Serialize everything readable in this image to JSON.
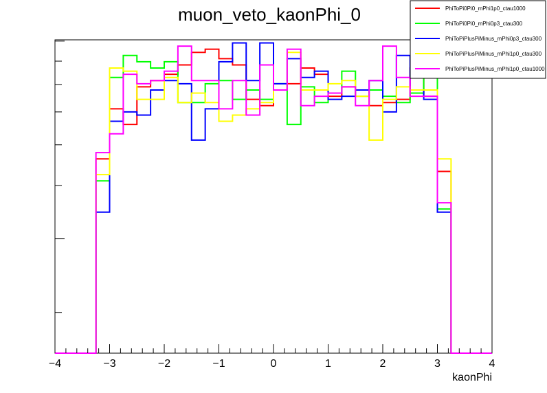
{
  "chart_data": {
    "type": "line",
    "step": true,
    "title": "muon_veto_kaonPhi_0",
    "xlabel": "kaonPhi",
    "ylabel": "",
    "xlim": [
      -4,
      4
    ],
    "ylim": [
      0,
      1
    ],
    "y_scale": "log",
    "y_tick_labels_shown": false,
    "grid": false,
    "legend_position": "top-right",
    "x_ticks": [
      -4,
      -3,
      -2,
      -1,
      0,
      1,
      2,
      3,
      4
    ],
    "bin_edges": [
      -4.0,
      -3.75,
      -3.5,
      -3.25,
      -3.0,
      -2.75,
      -2.5,
      -2.25,
      -2.0,
      -1.75,
      -1.5,
      -1.25,
      -1.0,
      -0.75,
      -0.5,
      -0.25,
      0.0,
      0.25,
      0.5,
      0.75,
      1.0,
      1.25,
      1.5,
      1.75,
      2.0,
      2.25,
      2.5,
      2.75,
      3.0,
      3.25,
      3.5,
      3.75,
      4.0
    ],
    "series": [
      {
        "name": "PhiToPi0Pi0_mPhi1p0_ctau1000",
        "color": "#ff0000",
        "values": [
          0,
          0,
          0,
          0.62,
          0.78,
          0.73,
          0.85,
          0.87,
          0.89,
          0.92,
          0.96,
          0.97,
          0.94,
          0.92,
          0.81,
          0.79,
          0.84,
          0.86,
          0.91,
          0.89,
          0.82,
          0.85,
          0.84,
          0.79,
          0.8,
          0.81,
          0.91,
          0.82,
          0.58,
          0,
          0,
          0
        ]
      },
      {
        "name": "PhiToPi0Pi0_mPhi0p3_ctau300",
        "color": "#00ff00",
        "values": [
          0,
          0,
          0,
          0.55,
          0.88,
          0.95,
          0.93,
          0.91,
          0.93,
          0.8,
          0.8,
          0.86,
          0.87,
          0.81,
          0.84,
          0.81,
          0.86,
          0.73,
          0.85,
          0.8,
          0.83,
          0.9,
          0.82,
          0.84,
          0.82,
          0.8,
          0.83,
          0.93,
          0.46,
          0,
          0,
          0
        ]
      },
      {
        "name": "PhiToPiPlusPiMinus_mPhi0p3_ctau300",
        "color": "#0000ff",
        "values": [
          0,
          0,
          0,
          0.45,
          0.74,
          0.77,
          0.76,
          0.84,
          0.87,
          0.86,
          0.68,
          0.78,
          0.93,
          0.99,
          0.87,
          0.99,
          0.86,
          0.94,
          0.88,
          0.9,
          0.81,
          0.82,
          0.84,
          0.87,
          0.77,
          0.95,
          0.84,
          0.81,
          0.45,
          0,
          0,
          0
        ]
      },
      {
        "name": "PhiToPiPlusPiMinus_mPhi1p0_ctau300",
        "color": "#ffff00",
        "values": [
          0,
          0,
          0,
          0.57,
          0.91,
          0.9,
          0.81,
          0.81,
          0.88,
          0.8,
          0.83,
          0.8,
          0.74,
          0.76,
          0.78,
          0.8,
          0.84,
          0.96,
          0.84,
          0.84,
          0.86,
          0.87,
          0.82,
          0.68,
          0.81,
          0.85,
          0.84,
          0.84,
          0.62,
          0,
          0,
          0
        ]
      },
      {
        "name": "PhiToPiPlusPiMinus_mPhi1p0_ctau1000",
        "color": "#ff00ff",
        "values": [
          0,
          0,
          0,
          0.64,
          0.7,
          0.89,
          0.86,
          0.87,
          0.9,
          0.98,
          0.87,
          0.87,
          0.78,
          0.87,
          0.76,
          0.92,
          0.84,
          0.97,
          0.79,
          0.82,
          0.83,
          0.85,
          0.79,
          0.87,
          0.98,
          0.88,
          0.82,
          0.82,
          0.48,
          0,
          0,
          0
        ]
      }
    ]
  }
}
